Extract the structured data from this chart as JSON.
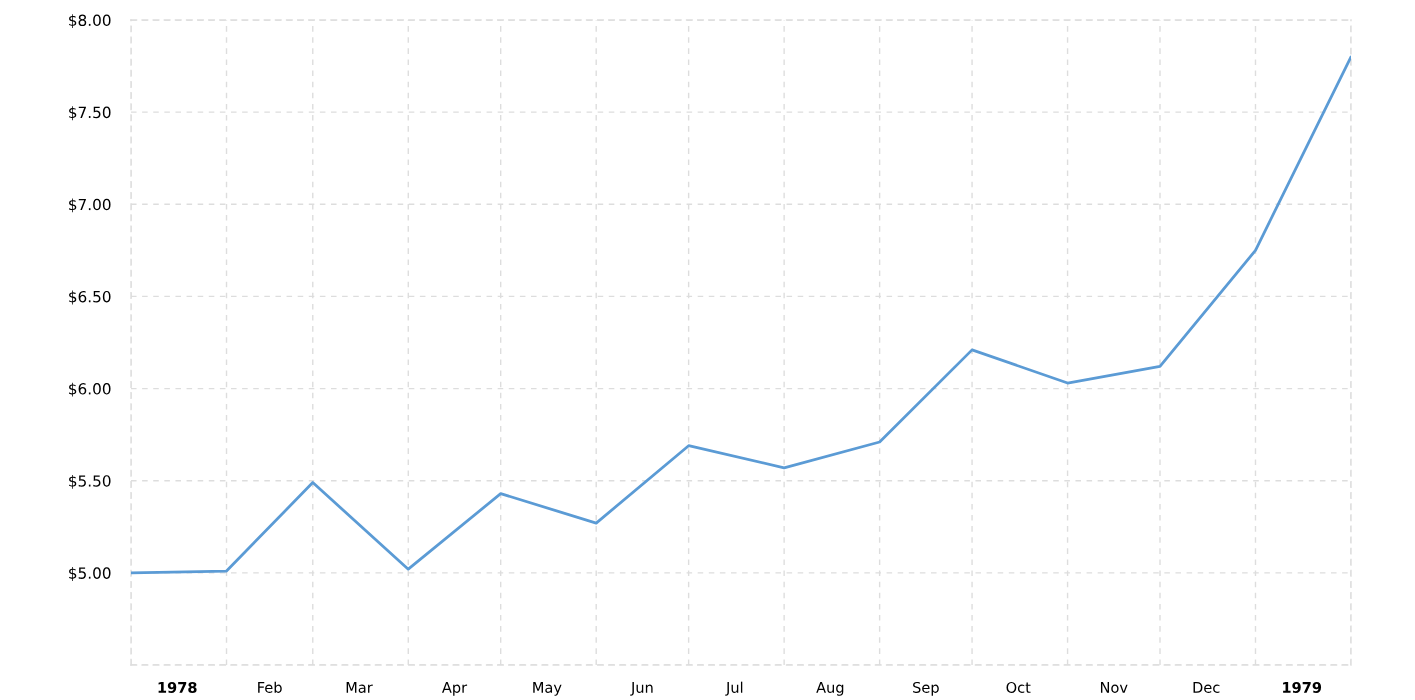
{
  "chart_data": {
    "type": "line",
    "x": [
      "1978-01",
      "1978-02",
      "1978-03",
      "1978-04",
      "1978-05",
      "1978-06",
      "1978-07",
      "1978-08",
      "1978-09",
      "1978-10",
      "1978-11",
      "1978-12",
      "1979-01",
      "1979-02"
    ],
    "series": [
      {
        "color": "#5b9bd5",
        "values": [
          5.0,
          5.01,
          5.49,
          5.02,
          5.43,
          5.27,
          5.69,
          5.57,
          5.71,
          6.21,
          6.03,
          6.12,
          6.75,
          7.8
        ]
      }
    ],
    "xlim": [
      "1978-01-01",
      "1979-02-01"
    ],
    "xticks": [
      {
        "value": "1978-01-01",
        "label": null
      },
      {
        "value": "1978-01-16",
        "label": "1978"
      },
      {
        "value": "1978-02-01",
        "label": null
      },
      {
        "value": "1978-02-15",
        "label": "Feb"
      },
      {
        "value": "1978-03-01",
        "label": null
      },
      {
        "value": "1978-03-16",
        "label": "Mar"
      },
      {
        "value": "1978-04-01",
        "label": null
      },
      {
        "value": "1978-04-16",
        "label": "Apr"
      },
      {
        "value": "1978-05-01",
        "label": null
      },
      {
        "value": "1978-05-16",
        "label": "May"
      },
      {
        "value": "1978-06-01",
        "label": null
      },
      {
        "value": "1978-06-16",
        "label": "Jun"
      },
      {
        "value": "1978-07-01",
        "label": null
      },
      {
        "value": "1978-07-16",
        "label": "Jul"
      },
      {
        "value": "1978-08-01",
        "label": null
      },
      {
        "value": "1978-08-16",
        "label": "Aug"
      },
      {
        "value": "1978-09-01",
        "label": null
      },
      {
        "value": "1978-09-16",
        "label": "Sep"
      },
      {
        "value": "1978-10-01",
        "label": null
      },
      {
        "value": "1978-10-16",
        "label": "Oct"
      },
      {
        "value": "1978-11-01",
        "label": null
      },
      {
        "value": "1978-11-16",
        "label": "Nov"
      },
      {
        "value": "1978-12-01",
        "label": null
      },
      {
        "value": "1978-12-16",
        "label": "Dec"
      },
      {
        "value": "1979-01-01",
        "label": null
      },
      {
        "value": "1979-01-16",
        "label": "1979"
      },
      {
        "value": "1979-02-01",
        "label": null
      }
    ],
    "ylim": [
      4.5,
      8.0
    ],
    "yticks": [
      {
        "value": 4.5,
        "label": null
      },
      {
        "value": 5.0,
        "label": "$5.00"
      },
      {
        "value": 5.5,
        "label": "$5.50"
      },
      {
        "value": 6.0,
        "label": "$6.00"
      },
      {
        "value": 6.5,
        "label": "$6.50"
      },
      {
        "value": 7.0,
        "label": "$7.00"
      },
      {
        "value": 7.5,
        "label": "$7.50"
      },
      {
        "value": 8.0,
        "label": "$8.00"
      }
    ],
    "grid": true,
    "line_style": "solid"
  }
}
